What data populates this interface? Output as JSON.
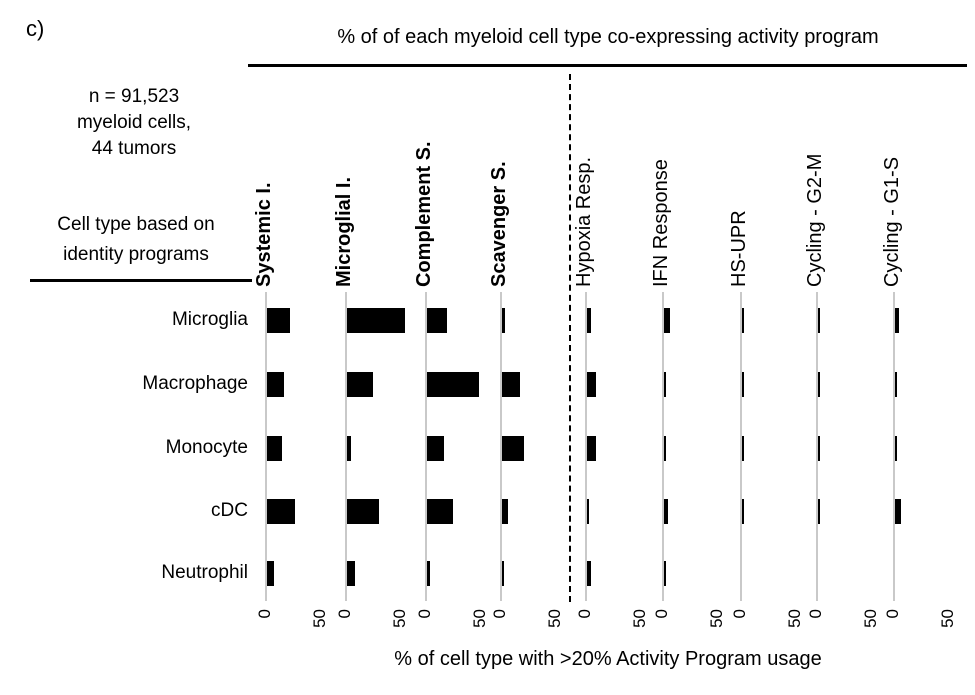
{
  "panel_label": "c)",
  "title": "% of of each myeloid cell type co-expressing activity program",
  "sample_annotation": {
    "line1": "n = 91,523",
    "line2": "myeloid cells,",
    "line3": "44 tumors"
  },
  "row_axis_label": {
    "line1": "Cell type based on",
    "line2": "identity programs"
  },
  "xlabel": "% of cell type with >20% Activity Program usage",
  "colors": {
    "bar": "#000000",
    "axis_line": "#c9c9c9",
    "separator": "#000000"
  },
  "chart_data": {
    "type": "bar",
    "orientation": "horizontal",
    "title": "% of of each myeloid cell type co-expressing activity program",
    "xlabel": "% of cell type with >20% Activity Program usage",
    "x_ticks": [
      0,
      50
    ],
    "xlim": [
      0,
      65
    ],
    "grid": false,
    "rows": [
      "Microglia",
      "Macrophage",
      "Monocyte",
      "cDC",
      "Neutrophil"
    ],
    "separator_after_program_index": 3,
    "programs": [
      {
        "name": "Systemic I.",
        "bold": true,
        "values": [
          21,
          15,
          14,
          25,
          6
        ]
      },
      {
        "name": "Microglial I.",
        "bold": true,
        "values": [
          53,
          24,
          4,
          29,
          7
        ]
      },
      {
        "name": "Complement S.",
        "bold": true,
        "values": [
          18,
          47,
          15,
          24,
          3
        ]
      },
      {
        "name": "Scavenger S.",
        "bold": true,
        "values": [
          3,
          16,
          20,
          5,
          1
        ]
      },
      {
        "name": "Hypoxia Resp.",
        "bold": false,
        "values": [
          4,
          8,
          8,
          1,
          4
        ]
      },
      {
        "name": "IFN Response",
        "bold": false,
        "values": [
          5,
          2,
          2,
          4,
          2
        ]
      },
      {
        "name": "HS-UPR",
        "bold": false,
        "values": [
          2,
          1,
          2,
          1,
          0
        ]
      },
      {
        "name": "Cycling - G2-M",
        "bold": false,
        "values": [
          1,
          1,
          1,
          1,
          0
        ]
      },
      {
        "name": "Cycling - G1-S",
        "bold": false,
        "values": [
          4,
          1,
          1,
          5,
          0
        ]
      }
    ]
  }
}
